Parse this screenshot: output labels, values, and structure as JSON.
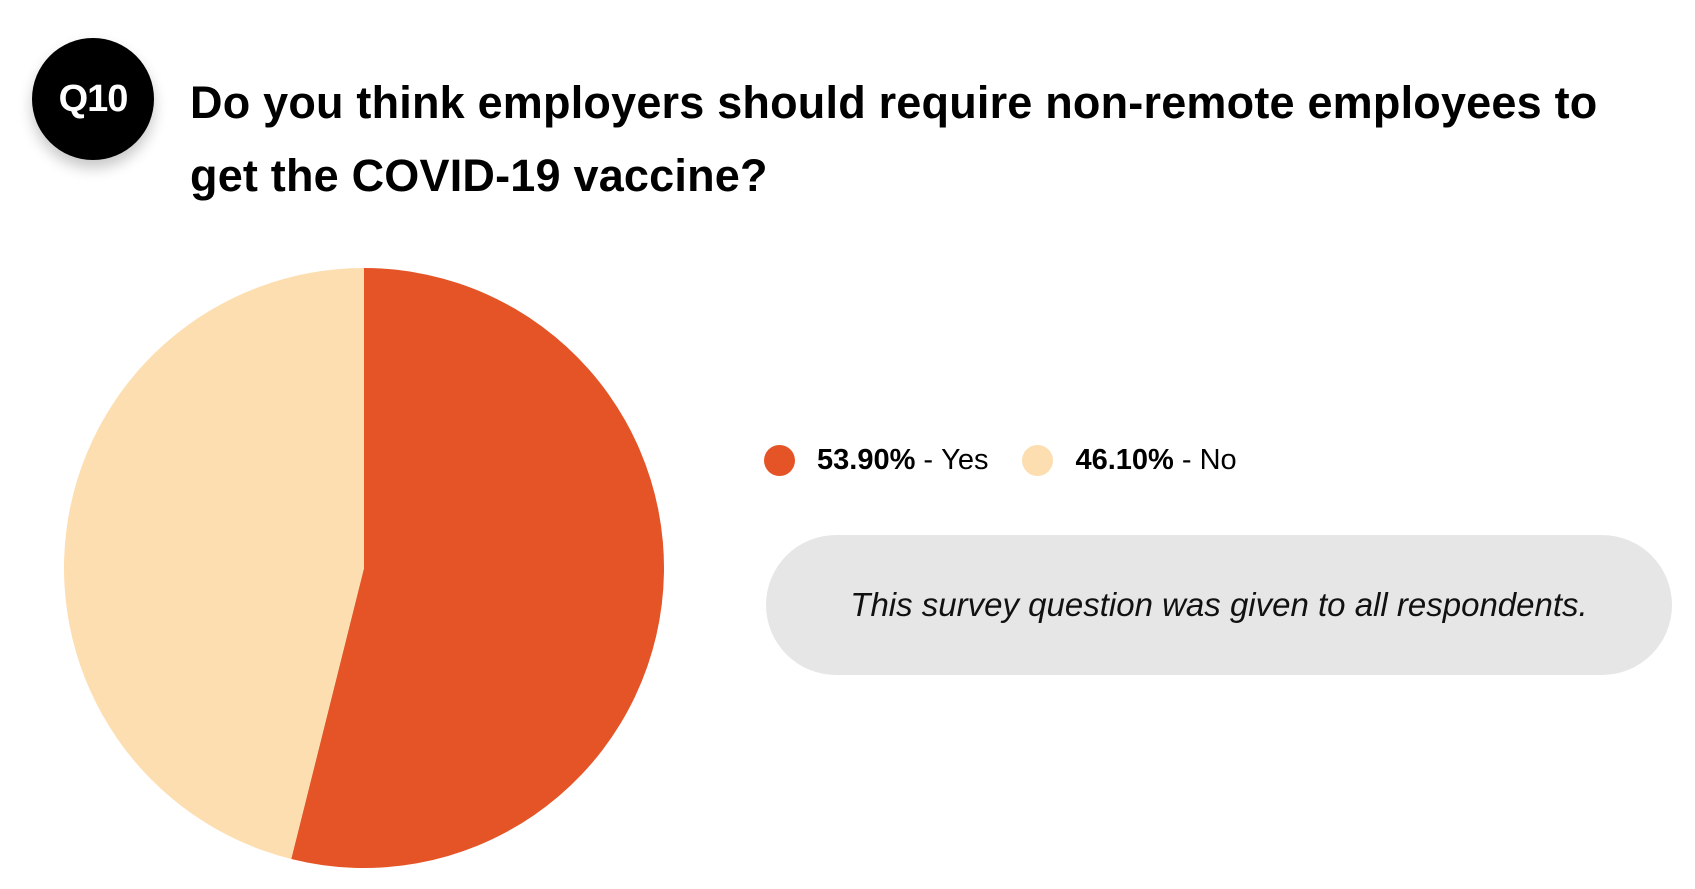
{
  "badge": {
    "label": "Q10"
  },
  "question": "Do you think employers should require non-remote employees to get the COVID-19 vaccine?",
  "note": "This survey question was given to all respondents.",
  "colors": {
    "yes": "#e45426",
    "no": "#fddeb0",
    "note_bg": "#e6e6e6"
  },
  "legend": [
    {
      "pct": "53.90%",
      "sep": " - ",
      "label": "Yes"
    },
    {
      "pct": "46.10%",
      "sep": " - ",
      "label": "No"
    }
  ],
  "chart_data": {
    "type": "pie",
    "title": "",
    "slices": [
      {
        "label": "Yes",
        "value": 53.9,
        "color": "#e45426"
      },
      {
        "label": "No",
        "value": 46.1,
        "color": "#fddeb0"
      }
    ],
    "start_angle": "12 o'clock",
    "direction": "clockwise",
    "legend_position": "right"
  }
}
